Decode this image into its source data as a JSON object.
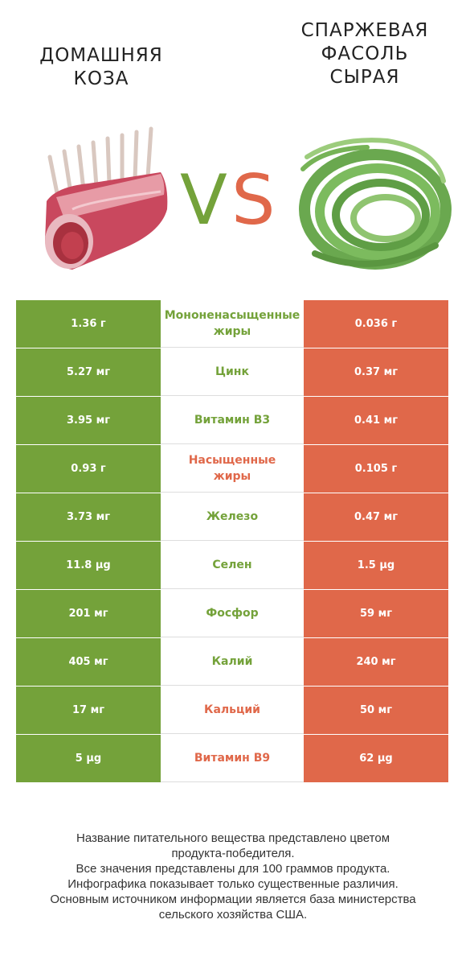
{
  "header": {
    "left_title": "ДОМАШНЯЯ\nКОЗА",
    "right_title": "СПАРЖЕВАЯ\nФАСОЛЬ\nСЫРАЯ",
    "vs_text": "VS"
  },
  "colors": {
    "left_winner": "#74a23a",
    "right_winner": "#e0684a",
    "vs_v": "#74a23a",
    "vs_s": "#e0684a"
  },
  "images": {
    "left": "goat-meat-rack-image",
    "right": "asparagus-bean-bundle-image"
  },
  "rows": [
    {
      "nutrient": "Мононенасыщенные\nжиры",
      "left": "1.36 г",
      "right": "0.036 г",
      "winner": "left"
    },
    {
      "nutrient": "Цинк",
      "left": "5.27 мг",
      "right": "0.37 мг",
      "winner": "left"
    },
    {
      "nutrient": "Витамин B3",
      "left": "3.95 мг",
      "right": "0.41 мг",
      "winner": "left"
    },
    {
      "nutrient": "Насыщенные\nжиры",
      "left": "0.93 г",
      "right": "0.105 г",
      "winner": "right"
    },
    {
      "nutrient": "Железо",
      "left": "3.73 мг",
      "right": "0.47 мг",
      "winner": "left"
    },
    {
      "nutrient": "Селен",
      "left": "11.8 µg",
      "right": "1.5 µg",
      "winner": "left"
    },
    {
      "nutrient": "Фосфор",
      "left": "201 мг",
      "right": "59 мг",
      "winner": "left"
    },
    {
      "nutrient": "Калий",
      "left": "405 мг",
      "right": "240 мг",
      "winner": "left"
    },
    {
      "nutrient": "Кальций",
      "left": "17 мг",
      "right": "50 мг",
      "winner": "right"
    },
    {
      "nutrient": "Витамин B9",
      "left": "5 µg",
      "right": "62 µg",
      "winner": "right"
    }
  ],
  "footer": {
    "lines": [
      "Название питательного вещества представлено цветом",
      "продукта-победителя.",
      "Все значения представлены для 100 граммов продукта.",
      "Инфографика показывает только существенные различия.",
      "Основным источником информации является база министерства",
      "сельского хозяйства США."
    ]
  }
}
